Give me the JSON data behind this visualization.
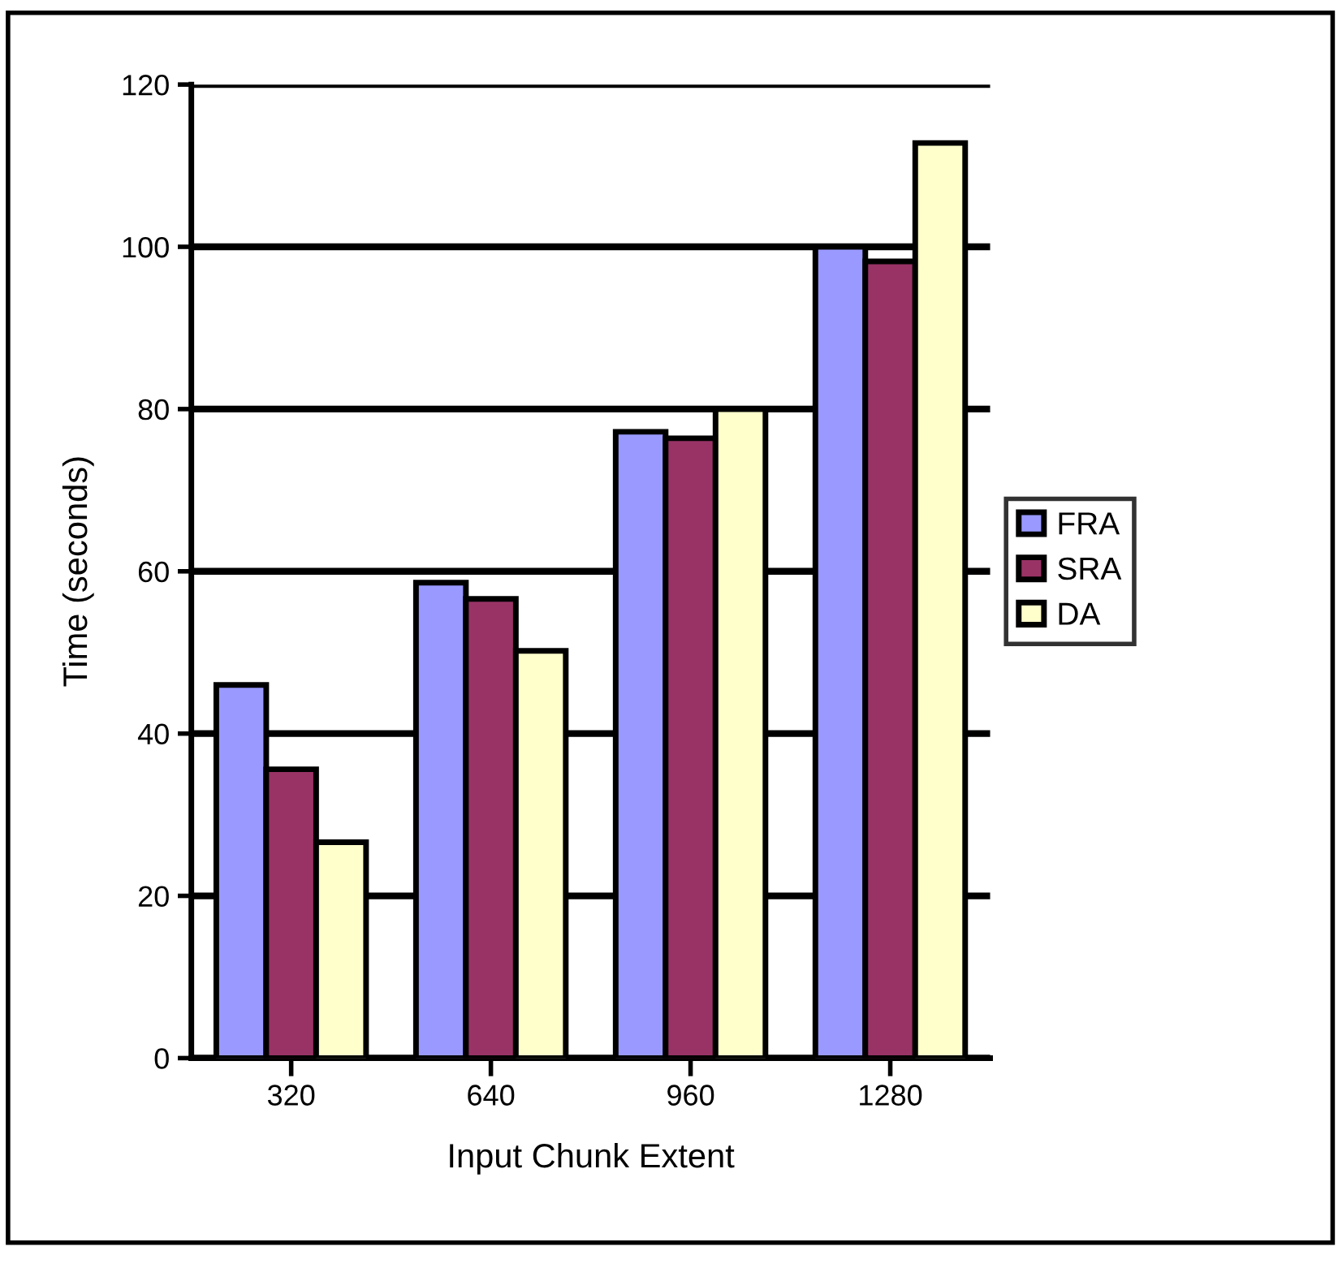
{
  "chart_data": {
    "type": "bar",
    "xlabel": "Input Chunk Extent",
    "ylabel": "Time (seconds)",
    "categories": [
      "320",
      "640",
      "960",
      "1280"
    ],
    "series": [
      {
        "name": "FRA",
        "color": "#9999ff",
        "values": [
          46,
          58.6,
          77.2,
          100
        ]
      },
      {
        "name": "SRA",
        "color": "#993366",
        "values": [
          35.6,
          56.6,
          76.4,
          98.2
        ]
      },
      {
        "name": "DA",
        "color": "#ffffcc",
        "values": [
          26.6,
          50.2,
          80,
          112.8
        ]
      }
    ],
    "ylim": [
      0,
      120
    ],
    "yticks": [
      0,
      20,
      40,
      60,
      80,
      100,
      120
    ],
    "grid": "y",
    "legend": "right"
  }
}
